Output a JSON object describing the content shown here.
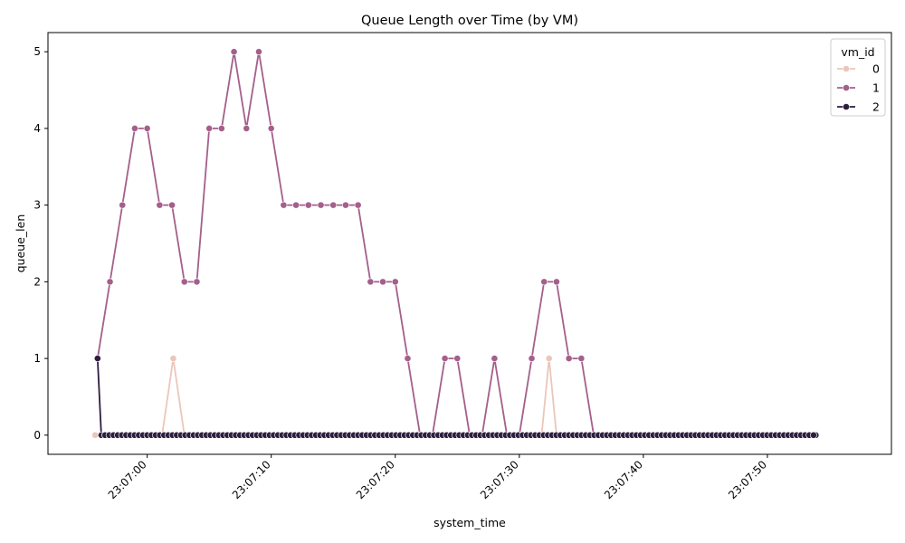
{
  "chart_data": {
    "type": "line",
    "title": "Queue Length over Time (by VM)",
    "xlabel": "system_time",
    "ylabel": "queue_len",
    "x_range_seconds": [
      -8,
      60
    ],
    "ylim": [
      -0.25,
      5.25
    ],
    "x_ticks": [
      {
        "t": 0,
        "label": "23:07:00"
      },
      {
        "t": 10,
        "label": "23:07:10"
      },
      {
        "t": 20,
        "label": "23:07:20"
      },
      {
        "t": 30,
        "label": "23:07:30"
      },
      {
        "t": 40,
        "label": "23:07:40"
      },
      {
        "t": 50,
        "label": "23:07:50"
      }
    ],
    "y_ticks": [
      0,
      1,
      2,
      3,
      4,
      5
    ],
    "legend": {
      "title": "vm_id",
      "position": "top-right"
    },
    "series": [
      {
        "name": "0",
        "color": "#ebc6bb",
        "points": [
          [
            -4.2,
            0
          ],
          [
            1.2,
            0
          ],
          [
            2.1,
            1
          ],
          [
            3.0,
            0
          ],
          [
            31.8,
            0
          ],
          [
            32.4,
            1
          ],
          [
            33.0,
            0
          ],
          [
            53.9,
            0
          ]
        ]
      },
      {
        "name": "1",
        "color": "#a45f8b",
        "points": [
          [
            -4.0,
            1
          ],
          [
            -3.0,
            2
          ],
          [
            -2.0,
            3
          ],
          [
            -1.0,
            4
          ],
          [
            0.0,
            4
          ],
          [
            1.0,
            3
          ],
          [
            2.0,
            3
          ],
          [
            3.0,
            2
          ],
          [
            4.0,
            2
          ],
          [
            5.0,
            4
          ],
          [
            6.0,
            4
          ],
          [
            7.0,
            5
          ],
          [
            8.0,
            4
          ],
          [
            9.0,
            5
          ],
          [
            10.0,
            4
          ],
          [
            11.0,
            3
          ],
          [
            12.0,
            3
          ],
          [
            13.0,
            3
          ],
          [
            14.0,
            3
          ],
          [
            15.0,
            3
          ],
          [
            16.0,
            3
          ],
          [
            17.0,
            3
          ],
          [
            18.0,
            2
          ],
          [
            19.0,
            2
          ],
          [
            20.0,
            2
          ],
          [
            21.0,
            1
          ],
          [
            22.0,
            0
          ],
          [
            23.0,
            0
          ],
          [
            24.0,
            1
          ],
          [
            25.0,
            1
          ],
          [
            26.0,
            0
          ],
          [
            27.0,
            0
          ],
          [
            28.0,
            1
          ],
          [
            29.0,
            0
          ],
          [
            30.0,
            0
          ],
          [
            31.0,
            1
          ],
          [
            32.0,
            2
          ],
          [
            33.0,
            2
          ],
          [
            34.0,
            1
          ],
          [
            35.0,
            1
          ],
          [
            36.0,
            0
          ],
          [
            53.9,
            0
          ]
        ]
      },
      {
        "name": "2",
        "color": "#2d1e3e",
        "points": [
          [
            -4.0,
            1
          ],
          [
            -3.7,
            0
          ],
          [
            -3.4,
            0
          ],
          [
            53.9,
            0
          ]
        ]
      }
    ],
    "dense_zero_markers": {
      "series": "2",
      "start": -3.4,
      "end": 53.9,
      "step": 0.34
    }
  }
}
